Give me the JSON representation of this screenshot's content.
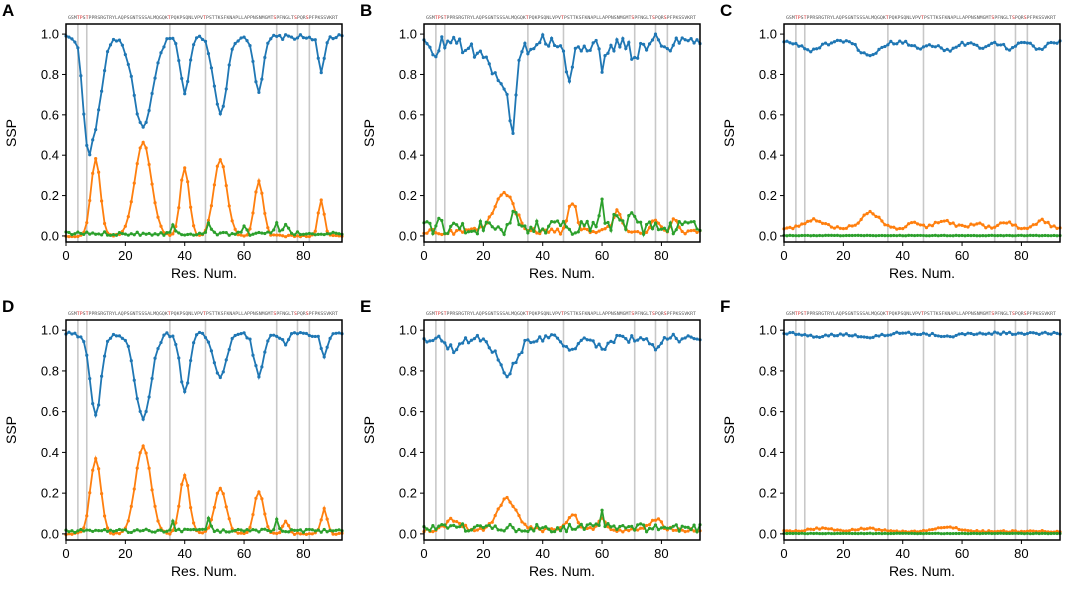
{
  "figure": {
    "sequence": "GSMTPSTPPRSRGTRYLAQPSGNTSSSALMQGQKTPQKPSQNLVPVTPSTTKSFKNAPLLAPPNSNMGMTSPFNGLTSPQRSPFPKSSVKRT",
    "colors": {
      "series1": "#1f77b4",
      "series2": "#ff7f0e",
      "series3": "#2ca02c",
      "vline": "#c8c8c8",
      "highlight": "#d62728"
    }
  },
  "chart_data": [
    {
      "type": "line",
      "panel": "A",
      "xlabel": "Res. Num.",
      "ylabel": "SSP",
      "xlim": [
        0,
        93
      ],
      "ylim": [
        -0.03,
        1.05
      ],
      "xticks": [
        "0",
        "20",
        "40",
        "60",
        "80"
      ],
      "yticks": [
        "0.0",
        "0.2",
        "0.4",
        "0.6",
        "0.8",
        "1.0"
      ],
      "vlines": [
        4,
        7,
        35,
        47,
        71,
        78,
        82
      ],
      "series": [
        {
          "name": "series1",
          "color": "#1f77b4",
          "baseline": 0.985,
          "noise": 0.012,
          "dips": [
            [
              7,
              0.385,
              1.5
            ],
            [
              10,
              0.4,
              2.2
            ],
            [
              26,
              0.45,
              3.2
            ],
            [
              40,
              0.27,
              1.5
            ],
            [
              52,
              0.37,
              2.2
            ],
            [
              65,
              0.27,
              1.5
            ],
            [
              86,
              0.18,
              1.0
            ]
          ]
        },
        {
          "name": "series2",
          "color": "#ff7f0e",
          "baseline": 0.0,
          "noise": 0.005,
          "dips": [
            [
              10,
              -0.38,
              1.6
            ],
            [
              26,
              -0.46,
              2.8
            ],
            [
              40,
              -0.34,
              1.5
            ],
            [
              52,
              -0.38,
              2.2
            ],
            [
              65,
              -0.27,
              1.5
            ],
            [
              86,
              -0.18,
              1.0
            ]
          ]
        },
        {
          "name": "series3",
          "color": "#2ca02c",
          "baseline": 0.012,
          "noise": 0.009,
          "dips": [
            [
              36,
              -0.04,
              0.6
            ],
            [
              48,
              -0.05,
              0.6
            ],
            [
              60,
              -0.04,
              0.6
            ],
            [
              71,
              -0.05,
              0.6
            ],
            [
              74,
              -0.04,
              0.8
            ]
          ]
        }
      ]
    },
    {
      "type": "line",
      "panel": "B",
      "xlabel": "Res. Num.",
      "ylabel": "SSP",
      "xlim": [
        0,
        93
      ],
      "ylim": [
        -0.03,
        1.05
      ],
      "xticks": [
        "0",
        "20",
        "40",
        "60",
        "80"
      ],
      "yticks": [
        "0.0",
        "0.2",
        "0.4",
        "0.6",
        "0.8",
        "1.0"
      ],
      "vlines": [
        4,
        7,
        35,
        47,
        71,
        78,
        82
      ],
      "series": [
        {
          "name": "series1",
          "color": "#1f77b4",
          "baseline": 0.96,
          "noise": 0.045,
          "dips": [
            [
              3,
              0.08,
              1.2
            ],
            [
              17,
              0.06,
              2
            ],
            [
              27,
              0.25,
              3.5
            ],
            [
              30,
              0.3,
              0.8
            ],
            [
              49,
              0.18,
              1.5
            ],
            [
              60,
              0.11,
              1.2
            ],
            [
              71,
              0.05,
              1.5
            ]
          ]
        },
        {
          "name": "series2",
          "color": "#ff7f0e",
          "baseline": 0.02,
          "noise": 0.015,
          "dips": [
            [
              27,
              -0.2,
              3.5
            ],
            [
              50,
              -0.14,
              1.5
            ],
            [
              65,
              -0.1,
              1.5
            ],
            [
              78,
              -0.06,
              1.2
            ],
            [
              84,
              -0.07,
              1
            ]
          ]
        },
        {
          "name": "series3",
          "color": "#2ca02c",
          "baseline": 0.04,
          "noise": 0.035,
          "dips": [
            [
              5,
              -0.08,
              0.6
            ],
            [
              30,
              -0.1,
              0.8
            ],
            [
              60,
              -0.17,
              0.6
            ],
            [
              65,
              -0.08,
              1
            ],
            [
              70,
              -0.08,
              1
            ]
          ]
        }
      ]
    },
    {
      "type": "line",
      "panel": "C",
      "xlabel": "Res. Num.",
      "ylabel": "SSP",
      "xlim": [
        0,
        93
      ],
      "ylim": [
        -0.03,
        1.05
      ],
      "xticks": [
        "0",
        "20",
        "40",
        "60",
        "80"
      ],
      "yticks": [
        "0.0",
        "0.2",
        "0.4",
        "0.6",
        "0.8",
        "1.0"
      ],
      "vlines": [
        4,
        7,
        35,
        47,
        71,
        78,
        82
      ],
      "series": [
        {
          "name": "series1",
          "color": "#1f77b4",
          "baseline": 0.96,
          "noise": 0.01,
          "dips": [
            [
              9,
              0.04,
              3
            ],
            [
              29,
              0.075,
              3
            ],
            [
              45,
              0.03,
              2
            ],
            [
              55,
              0.04,
              3
            ],
            [
              66,
              0.025,
              2
            ],
            [
              76,
              0.03,
              2
            ],
            [
              86,
              0.035,
              2
            ]
          ]
        },
        {
          "name": "series2",
          "color": "#ff7f0e",
          "baseline": 0.04,
          "noise": 0.008,
          "dips": [
            [
              10,
              -0.04,
              3
            ],
            [
              29,
              -0.075,
              3
            ],
            [
              44,
              -0.03,
              2
            ],
            [
              54,
              -0.035,
              3
            ],
            [
              65,
              -0.025,
              2
            ],
            [
              75,
              -0.03,
              2
            ],
            [
              87,
              -0.035,
              2
            ]
          ]
        },
        {
          "name": "series3",
          "color": "#2ca02c",
          "baseline": 0.002,
          "noise": 0.001,
          "dips": []
        }
      ]
    },
    {
      "type": "line",
      "panel": "D",
      "xlabel": "Res. Num.",
      "ylabel": "SSP",
      "xlim": [
        0,
        93
      ],
      "ylim": [
        -0.03,
        1.05
      ],
      "xticks": [
        "0",
        "20",
        "40",
        "60",
        "80"
      ],
      "yticks": [
        "0.0",
        "0.2",
        "0.4",
        "0.6",
        "0.8",
        "1.0"
      ],
      "vlines": [
        4,
        7,
        35,
        47,
        71,
        78,
        82
      ],
      "series": [
        {
          "name": "series1",
          "color": "#1f77b4",
          "baseline": 0.98,
          "noise": 0.012,
          "dips": [
            [
              10,
              0.4,
              1.8
            ],
            [
              26,
              0.42,
              2.6
            ],
            [
              40,
              0.28,
              1.6
            ],
            [
              52,
              0.22,
              2
            ],
            [
              65,
              0.2,
              1.6
            ],
            [
              74,
              0.06,
              1
            ],
            [
              87,
              0.12,
              1
            ]
          ]
        },
        {
          "name": "series2",
          "color": "#ff7f0e",
          "baseline": 0.0,
          "noise": 0.005,
          "dips": [
            [
              10,
              -0.37,
              1.8
            ],
            [
              26,
              -0.43,
              2.6
            ],
            [
              40,
              -0.29,
              1.6
            ],
            [
              52,
              -0.22,
              2
            ],
            [
              65,
              -0.21,
              1.6
            ],
            [
              74,
              -0.06,
              1
            ],
            [
              87,
              -0.12,
              1
            ]
          ]
        },
        {
          "name": "series3",
          "color": "#2ca02c",
          "baseline": 0.015,
          "noise": 0.008,
          "dips": [
            [
              36,
              -0.04,
              0.6
            ],
            [
              48,
              -0.06,
              0.6
            ],
            [
              71,
              -0.05,
              0.6
            ]
          ]
        }
      ]
    },
    {
      "type": "line",
      "panel": "E",
      "xlabel": "Res. Num.",
      "ylabel": "SSP",
      "xlim": [
        0,
        93
      ],
      "ylim": [
        -0.03,
        1.05
      ],
      "xticks": [
        "0",
        "20",
        "40",
        "60",
        "80"
      ],
      "yticks": [
        "0.0",
        "0.2",
        "0.4",
        "0.6",
        "0.8",
        "1.0"
      ],
      "vlines": [
        4,
        7,
        35,
        47,
        71,
        78,
        82
      ],
      "series": [
        {
          "name": "series1",
          "color": "#1f77b4",
          "baseline": 0.96,
          "noise": 0.02,
          "dips": [
            [
              10,
              0.05,
              2.5
            ],
            [
              28,
              0.17,
              3.2
            ],
            [
              50,
              0.07,
              2
            ],
            [
              60,
              0.06,
              1.5
            ],
            [
              78,
              0.05,
              2
            ]
          ]
        },
        {
          "name": "series2",
          "color": "#ff7f0e",
          "baseline": 0.02,
          "noise": 0.01,
          "dips": [
            [
              10,
              -0.05,
              2.5
            ],
            [
              28,
              -0.15,
              3.2
            ],
            [
              50,
              -0.07,
              2
            ],
            [
              60,
              -0.05,
              1.5
            ],
            [
              78,
              -0.05,
              2
            ]
          ]
        },
        {
          "name": "series3",
          "color": "#2ca02c",
          "baseline": 0.03,
          "noise": 0.02,
          "dips": [
            [
              60,
              -0.08,
              0.6
            ]
          ]
        }
      ]
    },
    {
      "type": "line",
      "panel": "F",
      "xlabel": "Res. Num.",
      "ylabel": "SSP",
      "xlim": [
        0,
        93
      ],
      "ylim": [
        -0.03,
        1.05
      ],
      "xticks": [
        "0",
        "20",
        "40",
        "60",
        "80"
      ],
      "yticks": [
        "0.0",
        "0.2",
        "0.4",
        "0.6",
        "0.8",
        "1.0"
      ],
      "vlines": [
        4,
        7,
        35,
        47,
        71,
        78,
        82
      ],
      "series": [
        {
          "name": "series1",
          "color": "#1f77b4",
          "baseline": 0.985,
          "noise": 0.006,
          "dips": [
            [
              12,
              0.015,
              4
            ],
            [
              28,
              0.02,
              4
            ],
            [
              55,
              0.015,
              4
            ]
          ]
        },
        {
          "name": "series2",
          "color": "#ff7f0e",
          "baseline": 0.012,
          "noise": 0.004,
          "dips": [
            [
              12,
              -0.015,
              4
            ],
            [
              28,
              -0.015,
              4
            ],
            [
              55,
              -0.02,
              4
            ]
          ]
        },
        {
          "name": "series3",
          "color": "#2ca02c",
          "baseline": 0.002,
          "noise": 0.001,
          "dips": []
        }
      ]
    }
  ]
}
